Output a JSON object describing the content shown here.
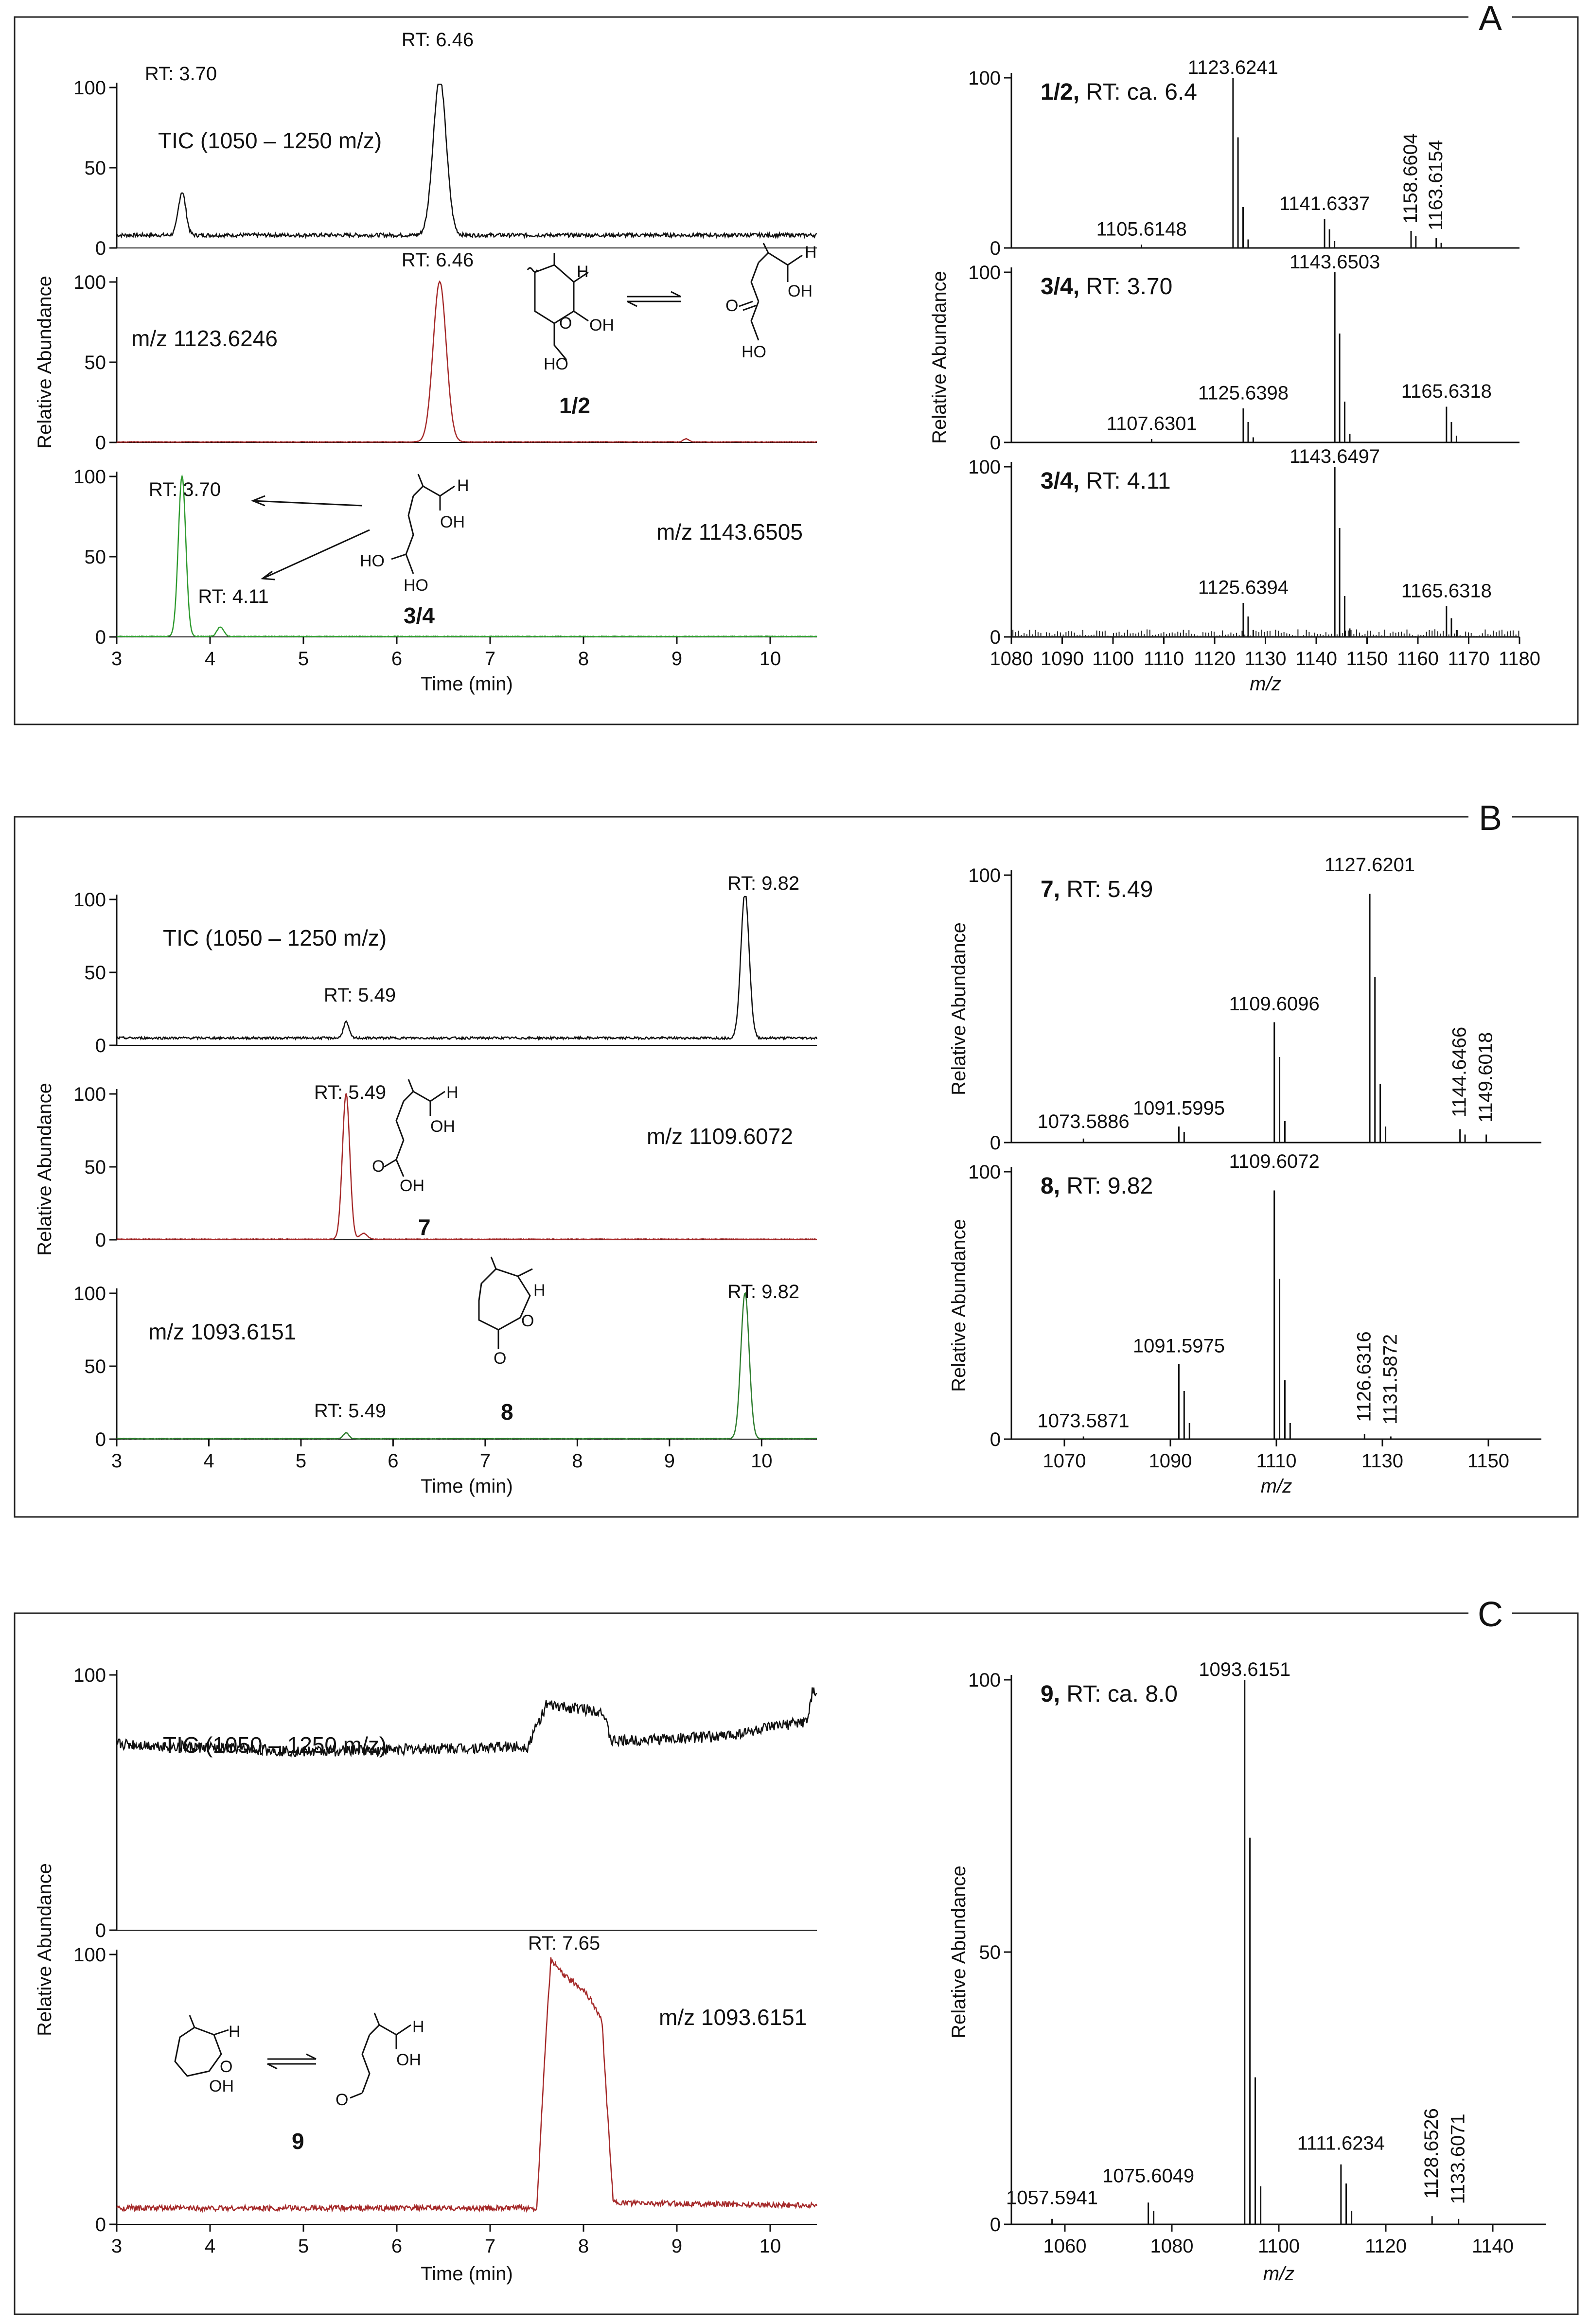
{
  "panel_labels": [
    "A",
    "B",
    "C"
  ],
  "compounds": {
    "c12": "1/2",
    "c34": "3/4",
    "c7": "7",
    "c8": "8",
    "c9": "9",
    "atoms": {
      "H": "H",
      "OH": "OH",
      "O": "O",
      "HO": "HO"
    }
  },
  "chart_data": [
    {
      "id": "A-chrom",
      "type": "line",
      "panel": "A",
      "xlabel": "Time (min)",
      "ylabel": "Relative Abundance",
      "xlim": [
        3,
        10.5
      ],
      "xticks": [
        3,
        4,
        5,
        6,
        7,
        8,
        9,
        10
      ],
      "traces": [
        {
          "id": "A-tic",
          "color": "#111111",
          "label": "TIC (1050 – 1250 m/z)",
          "ylim": [
            0,
            100
          ],
          "yticks": [
            0,
            50,
            100
          ],
          "baseline": 8,
          "noise": 1.2,
          "peaks": [
            {
              "x": 3.7,
              "y": 27,
              "w": 0.04
            },
            {
              "x": 6.46,
              "y": 98,
              "w": 0.07
            }
          ],
          "annotations": [
            "RT: 3.70",
            "RT: 6.46"
          ]
        },
        {
          "id": "A-1123",
          "color": "#a52a2a",
          "label": "m/z 1123.6246",
          "ylim": [
            0,
            100
          ],
          "yticks": [
            0,
            50,
            100
          ],
          "baseline": 0.3,
          "noise": 0.2,
          "peaks": [
            {
              "x": 6.46,
              "y": 100,
              "w": 0.07
            },
            {
              "x": 9.1,
              "y": 2,
              "w": 0.03
            }
          ],
          "annotations": [
            "RT: 6.46"
          ]
        },
        {
          "id": "A-1143",
          "color": "#2e9a2e",
          "label": "m/z 1143.6505",
          "ylim": [
            0,
            100
          ],
          "yticks": [
            0,
            50,
            100
          ],
          "baseline": 0.3,
          "noise": 0.2,
          "peaks": [
            {
              "x": 3.7,
              "y": 100,
              "w": 0.04
            },
            {
              "x": 4.11,
              "y": 6,
              "w": 0.035
            }
          ],
          "annotations": [
            "RT: 3.70",
            "RT: 4.11"
          ]
        }
      ]
    },
    {
      "id": "A-ms",
      "type": "bar",
      "panel": "A",
      "xlabel": "m/z",
      "ylabel": "Relative Abundance",
      "xlim": [
        1080,
        1180
      ],
      "xticks": [
        1080,
        1090,
        1100,
        1110,
        1120,
        1130,
        1140,
        1150,
        1160,
        1170,
        1180
      ],
      "spectra": [
        {
          "id": "A-ms1",
          "title": "1/2, RT: ca. 6.4",
          "yticks": [
            0,
            100
          ],
          "noise": 0,
          "peaks": [
            [
              1105.6,
              2
            ],
            [
              1123.6241,
              100
            ],
            [
              1124.6,
              65
            ],
            [
              1125.6,
              24
            ],
            [
              1126.6,
              5
            ],
            [
              1141.6337,
              17
            ],
            [
              1142.6,
              11
            ],
            [
              1143.6,
              4
            ],
            [
              1158.6604,
              10
            ],
            [
              1159.6,
              7
            ],
            [
              1163.6154,
              6
            ],
            [
              1164.6,
              3
            ]
          ],
          "labels": [
            {
              "x": 1105.6148,
              "y": 5,
              "text": "1105.6148",
              "rot": 0
            },
            {
              "x": 1123.6241,
              "y": 100,
              "text": "1123.6241",
              "rot": 0
            },
            {
              "x": 1141.6337,
              "y": 20,
              "text": "1141.6337",
              "rot": 0
            },
            {
              "x": 1158.6604,
              "y": 12,
              "text": "1158.6604",
              "rot": 1
            },
            {
              "x": 1163.6154,
              "y": 8,
              "text": "1163.6154",
              "rot": 1
            }
          ]
        },
        {
          "id": "A-ms2",
          "title": "3/4, RT: 3.70",
          "yticks": [
            0,
            100
          ],
          "noise": 0,
          "peaks": [
            [
              1107.6,
              2
            ],
            [
              1125.6398,
              20
            ],
            [
              1126.6,
              12
            ],
            [
              1127.6,
              3
            ],
            [
              1143.6503,
              100
            ],
            [
              1144.6,
              64
            ],
            [
              1145.6,
              24
            ],
            [
              1146.6,
              5
            ],
            [
              1165.6318,
              21
            ],
            [
              1166.6,
              12
            ],
            [
              1167.6,
              4
            ]
          ],
          "labels": [
            {
              "x": 1107.6301,
              "y": 5,
              "text": "1107.6301",
              "rot": 0
            },
            {
              "x": 1125.6398,
              "y": 23,
              "text": "1125.6398",
              "rot": 0
            },
            {
              "x": 1143.6503,
              "y": 100,
              "text": "1143.6503",
              "rot": 0
            },
            {
              "x": 1165.6318,
              "y": 24,
              "text": "1165.6318",
              "rot": 0
            }
          ]
        },
        {
          "id": "A-ms3",
          "title": "3/4, RT: 4.11",
          "yticks": [
            0,
            100
          ],
          "noise": 4,
          "peaks": [
            [
              1125.6394,
              20
            ],
            [
              1126.6,
              12
            ],
            [
              1127.6,
              4
            ],
            [
              1143.6497,
              100
            ],
            [
              1144.6,
              64
            ],
            [
              1145.6,
              24
            ],
            [
              1146.6,
              5
            ],
            [
              1165.6318,
              18
            ],
            [
              1166.6,
              11
            ],
            [
              1167.6,
              4
            ]
          ],
          "labels": [
            {
              "x": 1125.6394,
              "y": 23,
              "text": "1125.6394",
              "rot": 0
            },
            {
              "x": 1143.6497,
              "y": 100,
              "text": "1143.6497",
              "rot": 0
            },
            {
              "x": 1165.6318,
              "y": 21,
              "text": "1165.6318",
              "rot": 0
            }
          ]
        }
      ]
    },
    {
      "id": "B-chrom",
      "type": "line",
      "panel": "B",
      "xlabel": "Time (min)",
      "ylabel": "Relative Abundance",
      "xlim": [
        3,
        10.6
      ],
      "xticks": [
        3,
        4,
        5,
        6,
        7,
        8,
        9,
        10
      ],
      "traces": [
        {
          "id": "B-tic",
          "color": "#111111",
          "label": "TIC (1050 – 1250 m/z)",
          "ylim": [
            0,
            100
          ],
          "yticks": [
            0,
            50,
            100
          ],
          "baseline": 5,
          "noise": 0.8,
          "peaks": [
            {
              "x": 5.49,
              "y": 11,
              "w": 0.03
            },
            {
              "x": 9.82,
              "y": 100,
              "w": 0.045
            }
          ],
          "annotations": [
            "RT: 5.49",
            "RT: 9.82"
          ]
        },
        {
          "id": "B-1109",
          "color": "#a52a2a",
          "label": "m/z 1109.6072",
          "ylim": [
            0,
            100
          ],
          "yticks": [
            0,
            50,
            100
          ],
          "baseline": 0.4,
          "noise": 0.2,
          "peaks": [
            {
              "x": 5.49,
              "y": 100,
              "w": 0.04
            },
            {
              "x": 5.68,
              "y": 4,
              "w": 0.04
            }
          ],
          "annotations": [
            "RT: 5.49"
          ]
        },
        {
          "id": "B-1093",
          "color": "#2e7d2e",
          "label": "m/z 1093.6151",
          "ylim": [
            0,
            100
          ],
          "yticks": [
            0,
            50,
            100
          ],
          "baseline": 0.3,
          "noise": 0.2,
          "peaks": [
            {
              "x": 5.49,
              "y": 4,
              "w": 0.03
            },
            {
              "x": 9.82,
              "y": 100,
              "w": 0.045
            }
          ],
          "annotations": [
            "RT: 5.49",
            "RT: 9.82"
          ]
        }
      ]
    },
    {
      "id": "B-ms",
      "type": "bar",
      "panel": "B",
      "xlabel": "m/z",
      "ylabel": "Relative Abundance",
      "xlim": [
        1060,
        1160
      ],
      "xticks": [
        1070,
        1090,
        1110,
        1130,
        1150
      ],
      "spectra": [
        {
          "id": "B-ms1",
          "title": "7, RT: 5.49",
          "yticks": [
            0,
            100
          ],
          "noise": 0,
          "peaks": [
            [
              1073.6,
              1.5
            ],
            [
              1091.5995,
              6
            ],
            [
              1092.6,
              4
            ],
            [
              1109.6096,
              45
            ],
            [
              1110.6,
              32
            ],
            [
              1111.6,
              8
            ],
            [
              1127.6201,
              93
            ],
            [
              1128.6,
              62
            ],
            [
              1129.6,
              22
            ],
            [
              1130.6,
              6
            ],
            [
              1144.6466,
              5
            ],
            [
              1145.6,
              3
            ],
            [
              1149.6018,
              3
            ]
          ],
          "labels": [
            {
              "x": 1073.5886,
              "y": 4,
              "text": "1073.5886",
              "rot": 0
            },
            {
              "x": 1091.5995,
              "y": 9,
              "text": "1091.5995",
              "rot": 0
            },
            {
              "x": 1109.6096,
              "y": 48,
              "text": "1109.6096",
              "rot": 0
            },
            {
              "x": 1127.6201,
              "y": 100,
              "text": "1127.6201",
              "rot": 0
            },
            {
              "x": 1144.6466,
              "y": 8,
              "text": "1144.6466",
              "rot": 1
            },
            {
              "x": 1149.6018,
              "y": 6,
              "text": "1149.6018",
              "rot": 1
            }
          ]
        },
        {
          "id": "B-ms2",
          "title": "8, RT: 9.82",
          "yticks": [
            0,
            100
          ],
          "noise": 0,
          "peaks": [
            [
              1073.6,
              1
            ],
            [
              1091.5975,
              28
            ],
            [
              1092.6,
              18
            ],
            [
              1093.6,
              6
            ],
            [
              1109.6072,
              93
            ],
            [
              1110.6,
              60
            ],
            [
              1111.6,
              22
            ],
            [
              1112.6,
              6
            ],
            [
              1126.6316,
              2
            ],
            [
              1131.5872,
              1
            ]
          ],
          "labels": [
            {
              "x": 1073.5871,
              "y": 3,
              "text": "1073.5871",
              "rot": 0
            },
            {
              "x": 1091.5975,
              "y": 31,
              "text": "1091.5975",
              "rot": 0
            },
            {
              "x": 1109.6072,
              "y": 100,
              "text": "1109.6072",
              "rot": 0
            },
            {
              "x": 1126.6316,
              "y": 5,
              "text": "1126.6316",
              "rot": 1
            },
            {
              "x": 1131.5872,
              "y": 4,
              "text": "1131.5872",
              "rot": 1
            }
          ]
        }
      ]
    },
    {
      "id": "C-chrom",
      "type": "line",
      "panel": "C",
      "xlabel": "Time (min)",
      "ylabel": "Relative Abundance",
      "xlim": [
        3,
        10.5
      ],
      "xticks": [
        3,
        4,
        5,
        6,
        7,
        8,
        9,
        10
      ],
      "traces": [
        {
          "id": "C-tic",
          "color": "#111111",
          "label": "TIC (1050 – 1250 m/z)",
          "ylim": [
            0,
            100
          ],
          "yticks": [
            0,
            100
          ],
          "noise": 2.2,
          "profile": [
            [
              3,
              73
            ],
            [
              5,
              70
            ],
            [
              7.4,
              72
            ],
            [
              7.6,
              88
            ],
            [
              8.2,
              86
            ],
            [
              8.3,
              74
            ],
            [
              9.5,
              76
            ],
            [
              10.4,
              82
            ],
            [
              10.45,
              93
            ],
            [
              10.5,
              93
            ]
          ],
          "annotations": []
        },
        {
          "id": "C-1093",
          "color": "#a52a2a",
          "label": "m/z 1093.6151",
          "ylim": [
            0,
            100
          ],
          "yticks": [
            0,
            100
          ],
          "noise": 1.0,
          "profile": [
            [
              3,
              6
            ],
            [
              7.5,
              6
            ],
            [
              7.58,
              60
            ],
            [
              7.65,
              98
            ],
            [
              7.8,
              92
            ],
            [
              8.0,
              87
            ],
            [
              8.1,
              82
            ],
            [
              8.2,
              75
            ],
            [
              8.25,
              45
            ],
            [
              8.32,
              8
            ],
            [
              10.5,
              7
            ]
          ],
          "annotations": [
            "RT: 7.65"
          ]
        }
      ]
    },
    {
      "id": "C-ms",
      "type": "bar",
      "panel": "C",
      "xlabel": "m/z",
      "ylabel": "Relative Abundance",
      "xlim": [
        1050,
        1150
      ],
      "xticks": [
        1060,
        1080,
        1100,
        1120,
        1140
      ],
      "spectra": [
        {
          "id": "C-ms1",
          "title": "9, RT: ca. 8.0",
          "yticks": [
            0,
            50,
            100
          ],
          "noise": 0,
          "peaks": [
            [
              1057.6,
              1
            ],
            [
              1075.6049,
              4
            ],
            [
              1076.6,
              2.5
            ],
            [
              1093.6151,
              100
            ],
            [
              1094.6,
              71
            ],
            [
              1095.6,
              27
            ],
            [
              1096.6,
              7
            ],
            [
              1111.6234,
              11
            ],
            [
              1112.6,
              7.5
            ],
            [
              1113.6,
              2.5
            ],
            [
              1128.6526,
              1.5
            ],
            [
              1133.6071,
              1
            ]
          ],
          "labels": [
            {
              "x": 1057.5941,
              "y": 3,
              "text": "1057.5941",
              "rot": 0
            },
            {
              "x": 1075.6049,
              "y": 7,
              "text": "1075.6049",
              "rot": 0
            },
            {
              "x": 1093.6151,
              "y": 100,
              "text": "1093.6151",
              "rot": 0
            },
            {
              "x": 1111.6234,
              "y": 13,
              "text": "1111.6234",
              "rot": 0
            },
            {
              "x": 1128.6526,
              "y": 4,
              "text": "1128.6526",
              "rot": 1
            },
            {
              "x": 1133.6071,
              "y": 3,
              "text": "1133.6071",
              "rot": 1
            }
          ]
        }
      ]
    }
  ]
}
